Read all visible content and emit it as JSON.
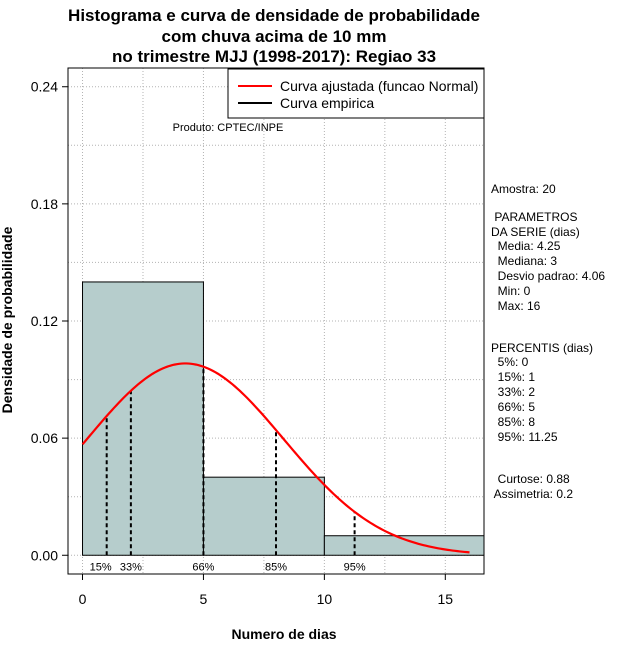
{
  "chart_data": {
    "type": "histogram",
    "title": [
      "Histograma e curva de densidade de probabilidade",
      "com chuva acima de 10 mm",
      "no trimestre MJJ (1998-2017): Regiao 33"
    ],
    "xlabel": "Numero de dias",
    "ylabel": "Densidade de probabilidade",
    "xlim": [
      -0.6,
      16.6
    ],
    "ylim": [
      -0.0096,
      0.2496
    ],
    "x_ticks": [
      0,
      5,
      10,
      15
    ],
    "y_ticks": [
      0.0,
      0.06,
      0.12,
      0.18,
      0.24
    ],
    "y_tick_labels": [
      "0.00",
      "0.06",
      "0.12",
      "0.18",
      "0.24"
    ],
    "bins": [
      {
        "x0": 0,
        "x1": 5,
        "density": 0.14
      },
      {
        "x0": 5,
        "x1": 10,
        "density": 0.04
      },
      {
        "x0": 10,
        "x1": 16.6,
        "density": 0.01
      }
    ],
    "normal_curve": {
      "name": "Curva ajustada (funcao Normal)",
      "mean": 4.25,
      "sd": 4.06,
      "x_range": [
        0,
        16
      ],
      "color": "#ff0000"
    },
    "empirical_curve": {
      "name": "Curva empirica",
      "color": "#000000"
    },
    "percentile_lines": [
      {
        "label": "15%",
        "x": 1
      },
      {
        "label": "33%",
        "x": 2
      },
      {
        "label": "66%",
        "x": 5
      },
      {
        "label": "85%",
        "x": 8
      },
      {
        "label": "95%",
        "x": 11.25
      }
    ],
    "annotation": "Produto: CPTEC/INPE",
    "legend_position": "top-right",
    "grid": true,
    "colors": {
      "bar_fill": "#b6cdcc",
      "bar_edge": "#000000",
      "grid": "#b3b3b3"
    }
  },
  "stats_panel": {
    "amostra": "Amostra: 20",
    "parametros_title": " PARAMETROS\nDA SERIE (dias)",
    "parametros": "  Media: 4.25\n  Mediana: 3\n  Desvio padrao: 4.06\n  Min: 0\n  Max: 16",
    "percentis_title": "PERCENTIS (dias)",
    "percentis": "  5%: 0\n  15%: 1\n  33%: 2\n  66%: 5\n  85%: 8\n  95%: 11.25",
    "shape": "  Curtose: 0.88\n Assimetria: 0.2"
  }
}
